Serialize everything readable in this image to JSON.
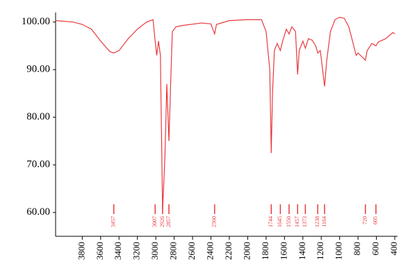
{
  "chart_data": {
    "type": "line",
    "x": [
      4090,
      3900,
      3800,
      3700,
      3600,
      3500,
      3457,
      3400,
      3300,
      3200,
      3100,
      3030,
      3007,
      2990,
      2970,
      2950,
      2926,
      2900,
      2880,
      2857,
      2840,
      2820,
      2780,
      2700,
      2500,
      2400,
      2360,
      2340,
      2200,
      2000,
      1850,
      1800,
      1760,
      1744,
      1730,
      1710,
      1680,
      1645,
      1620,
      1580,
      1550,
      1520,
      1480,
      1457,
      1440,
      1400,
      1373,
      1340,
      1300,
      1260,
      1238,
      1210,
      1164,
      1140,
      1100,
      1050,
      1000,
      950,
      900,
      860,
      820,
      800,
      720,
      700,
      650,
      605,
      580,
      500,
      420,
      400
    ],
    "series": [
      {
        "color": "#e8383d",
        "values": [
          100.3,
          100,
          99.5,
          98.5,
          96,
          93.8,
          93.5,
          94,
          96.5,
          98.5,
          100,
          100.5,
          96,
          93,
          96,
          93,
          60.5,
          72,
          87,
          75,
          86,
          98,
          99,
          99.3,
          99.8,
          99.6,
          97.5,
          99.5,
          100.3,
          100.5,
          100.5,
          98,
          90,
          72.5,
          85,
          94,
          95.5,
          94,
          96,
          98.5,
          97.5,
          99,
          98,
          89,
          94,
          96,
          94.5,
          96.5,
          96.2,
          95,
          93.5,
          94,
          86.5,
          92,
          98,
          100.5,
          101,
          100.8,
          99,
          96,
          93,
          93.5,
          92,
          94,
          95.5,
          95,
          95.8,
          96.5,
          97.8,
          97.5
        ]
      }
    ],
    "peak_markers": [
      3457,
      3007,
      2926,
      2857,
      2360,
      1744,
      1645,
      1550,
      1457,
      1373,
      1238,
      1164,
      720,
      605
    ],
    "xlim": [
      4090,
      370
    ],
    "ylim": [
      55,
      102
    ],
    "xticks": [
      3800,
      3600,
      3400,
      3200,
      3000,
      2800,
      2600,
      2400,
      2200,
      2000,
      1800,
      1600,
      1400,
      1200,
      1000,
      800,
      600,
      400
    ],
    "yticks": [
      {
        "value": 60,
        "label": "60.00"
      },
      {
        "value": 70,
        "label": "70.00"
      },
      {
        "value": 80,
        "label": "80.00"
      },
      {
        "value": 90,
        "label": "90.00"
      },
      {
        "value": 100,
        "label": "100.00"
      }
    ]
  }
}
